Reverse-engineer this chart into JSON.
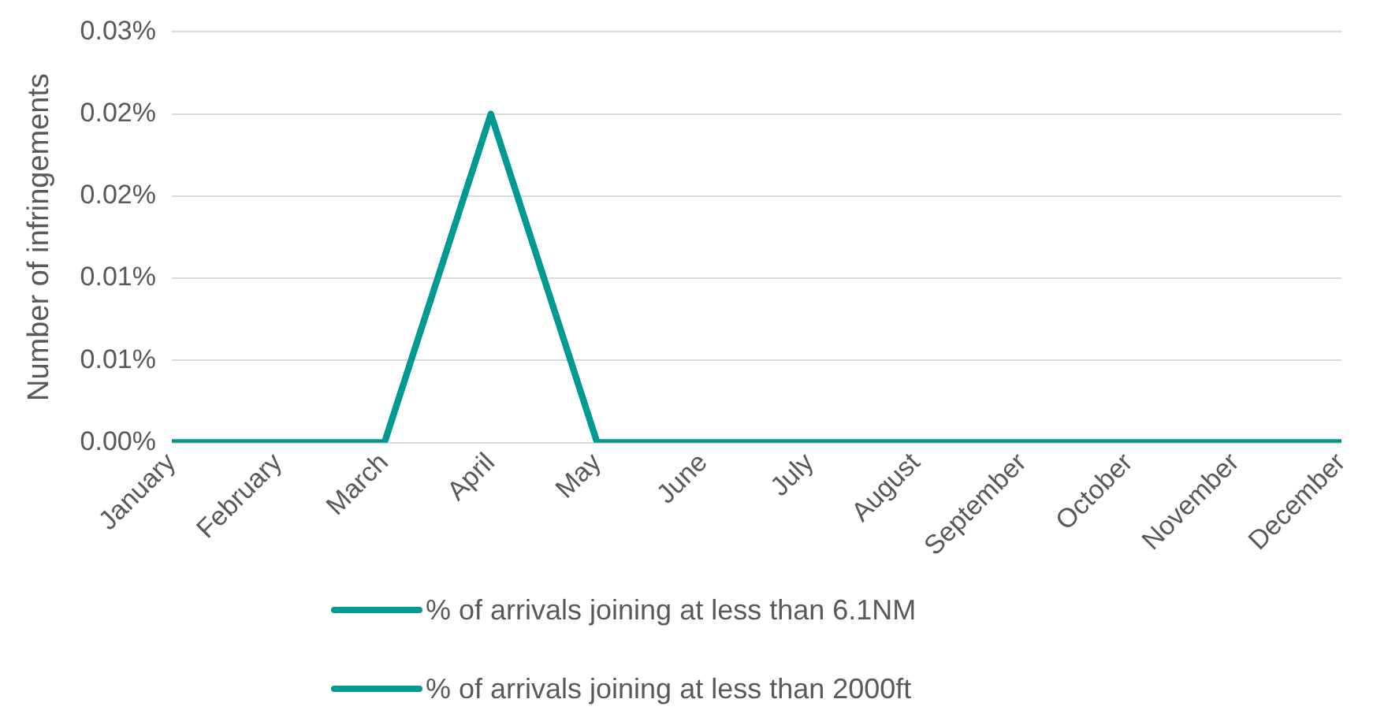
{
  "chart_data": {
    "type": "line",
    "ylabel": "Number of infringements",
    "categories": [
      "January",
      "February",
      "March",
      "April",
      "May",
      "June",
      "July",
      "August",
      "September",
      "October",
      "November",
      "December"
    ],
    "series": [
      {
        "name": "% of arrivals joining at less than 6.1NM",
        "color": "#009a93",
        "values": [
          0,
          0,
          0,
          0.02,
          0,
          0,
          0,
          0,
          0,
          0,
          0,
          0
        ]
      },
      {
        "name": "% of arrivals joining at less than 2000ft",
        "color": "#009a93",
        "values": [
          0,
          0,
          0,
          0.02,
          0,
          0,
          0,
          0,
          0,
          0,
          0,
          0
        ]
      }
    ],
    "ylim": [
      0,
      0.025
    ],
    "yticks": [
      {
        "value": 0,
        "label": "0.00%"
      },
      {
        "value": 0.005,
        "label": "0.01%"
      },
      {
        "value": 0.01,
        "label": "0.01%"
      },
      {
        "value": 0.015,
        "label": "0.02%"
      },
      {
        "value": 0.02,
        "label": "0.02%"
      },
      {
        "value": 0.025,
        "label": "0.03%"
      }
    ],
    "grid": "y",
    "legend": "bottom",
    "marker": "none",
    "line_style": "solid"
  }
}
